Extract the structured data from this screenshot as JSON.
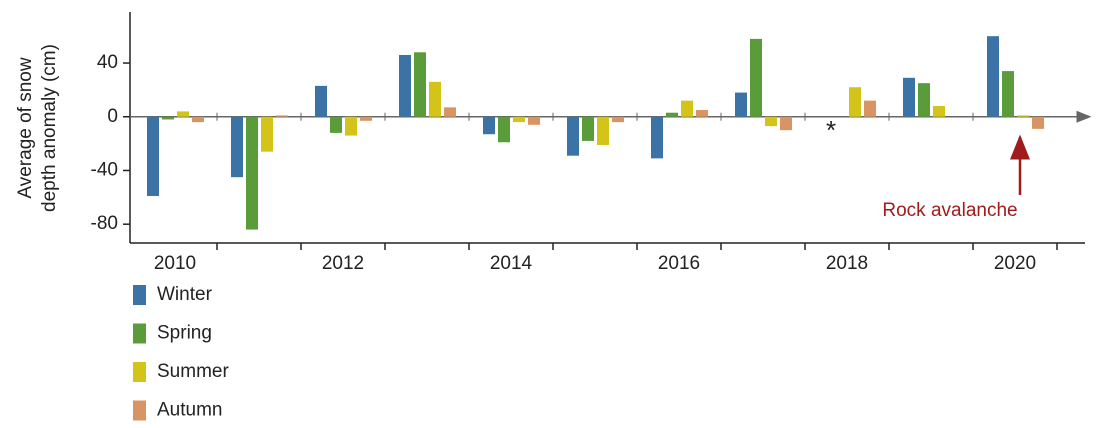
{
  "chart_data": {
    "type": "bar",
    "ylabel": [
      "Average of snow",
      "depth anomaly  (cm)"
    ],
    "categories": [
      "2010",
      null,
      "2012",
      null,
      "2014",
      null,
      "2016",
      null,
      "2018",
      null,
      "2020"
    ],
    "series": [
      {
        "name": "Winter",
        "color": "#3b73a6",
        "values": [
          -59,
          -45,
          23,
          46,
          -13,
          -29,
          -31,
          18,
          null,
          29,
          60
        ]
      },
      {
        "name": "Spring",
        "color": "#5a9b3a",
        "values": [
          -2,
          -84,
          -12,
          48,
          -19,
          -18,
          3,
          58,
          null,
          25,
          34
        ]
      },
      {
        "name": "Summer",
        "color": "#d4c41a",
        "values": [
          4,
          -26,
          -14,
          26,
          -4,
          -21,
          12,
          -7,
          22,
          8,
          1
        ]
      },
      {
        "name": "Autumn",
        "color": "#d99464",
        "values": [
          -4,
          1,
          -3,
          7,
          -6,
          -4,
          5,
          -10,
          12,
          null,
          -9
        ]
      }
    ],
    "ylim": [
      -94,
      78
    ],
    "yticks": [
      -80,
      -40,
      0,
      40
    ],
    "annotations": [
      {
        "text": "*"
      },
      {
        "text": "Rock avalanche",
        "color": "#a01c1c"
      }
    ]
  }
}
